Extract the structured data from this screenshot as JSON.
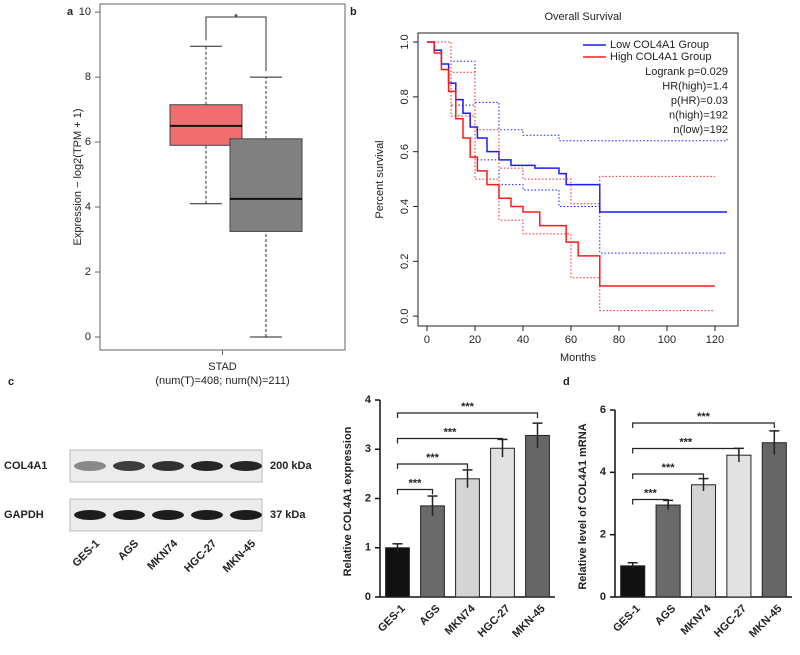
{
  "chart_data": [
    {
      "type": "box",
      "panel": "a",
      "ylabel": "Expression − log2(TPM + 1)",
      "xlabel": "STAD",
      "xsublabel": "(num(T)=408; num(N)=211)",
      "ylim": [
        -0.4,
        10.25
      ],
      "yticks": [
        0,
        2,
        4,
        6,
        8,
        10
      ],
      "boxes": [
        {
          "color": "#f26d6f",
          "q1": 5.9,
          "median": 6.5,
          "q3": 7.15,
          "whisker_low": 4.1,
          "whisker_high": 8.95
        },
        {
          "color": "#808080",
          "q1": 3.25,
          "median": 4.25,
          "q3": 6.1,
          "whisker_low": 0,
          "whisker_high": 8.0
        }
      ],
      "significance": "*",
      "significance_color": "#e03030"
    },
    {
      "type": "survival",
      "panel": "b",
      "title": "Overall Survival",
      "xlabel": "Months",
      "ylabel": "Percent survival",
      "xlim": [
        -3.75,
        129.6
      ],
      "xticks": [
        0,
        20,
        40,
        60,
        80,
        100,
        120
      ],
      "ylim": [
        -0.036,
        1.033
      ],
      "yticks": [
        {
          "value": 0,
          "label": "0.0"
        },
        {
          "value": 0.2,
          "label": "0.2"
        },
        {
          "value": 0.4,
          "label": "0.4"
        },
        {
          "value": 0.6,
          "label": "0.6"
        },
        {
          "value": 0.8,
          "label": "0.8"
        },
        {
          "value": 1,
          "label": "1.0"
        }
      ],
      "series": [
        {
          "name": "Low COL4A1 Group",
          "color": "#1a1aff",
          "x": [
            0,
            3,
            6,
            9,
            12,
            15,
            18,
            21,
            25,
            30,
            35,
            45,
            55,
            58,
            72,
            125
          ],
          "values": [
            1.0,
            0.97,
            0.92,
            0.85,
            0.79,
            0.74,
            0.69,
            0.65,
            0.6,
            0.57,
            0.55,
            0.54,
            0.52,
            0.48,
            0.38,
            0.38
          ],
          "ci_x": [
            0,
            10,
            20,
            30,
            40,
            55,
            72,
            125
          ],
          "ci_upper": [
            1.0,
            0.93,
            0.78,
            0.68,
            0.66,
            0.64,
            0.64,
            0.65
          ],
          "ci_lower": [
            1.0,
            0.77,
            0.57,
            0.48,
            0.46,
            0.4,
            0.23,
            0.23
          ]
        },
        {
          "name": "High COL4A1 Group",
          "color": "#ff1a1a",
          "x": [
            0,
            3,
            6,
            9,
            12,
            15,
            18,
            21,
            25,
            30,
            35,
            40,
            47,
            58,
            63,
            72,
            120
          ],
          "values": [
            1.0,
            0.96,
            0.9,
            0.82,
            0.72,
            0.65,
            0.58,
            0.53,
            0.48,
            0.43,
            0.4,
            0.38,
            0.33,
            0.27,
            0.22,
            0.11,
            0.11
          ],
          "ci_x": [
            0,
            10,
            20,
            30,
            40,
            60,
            72,
            120
          ],
          "ci_upper": [
            1.0,
            0.89,
            0.68,
            0.54,
            0.5,
            0.41,
            0.51,
            0.51
          ],
          "ci_lower": [
            1.0,
            0.73,
            0.5,
            0.35,
            0.3,
            0.14,
            0.02,
            0.02
          ]
        }
      ],
      "annotations": [
        "Logrank p=0.029",
        "HR(high)=1.4",
        "p(HR)=0.03",
        "n(high)=192",
        "n(low)=192"
      ]
    },
    {
      "type": "bar",
      "ylabel": "Relative COL4A1 expression",
      "categories": [
        "GES-1",
        "AGS",
        "MKN74",
        "HGC-27",
        "MKN-45"
      ],
      "values": [
        1.0,
        1.85,
        2.4,
        3.02,
        3.28
      ],
      "errors": [
        0.08,
        0.2,
        0.18,
        0.18,
        0.25
      ],
      "colors": [
        "#111111",
        "#6a6a6a",
        "#d4d4d4",
        "#e2e2e2",
        "#666666"
      ],
      "ylim": [
        0,
        4
      ],
      "yticks": [
        0,
        1,
        2,
        3,
        4
      ],
      "significance": [
        "***",
        "***",
        "***",
        "***"
      ]
    },
    {
      "type": "bar",
      "panel": "d",
      "ylabel": "Relative level of COL4A1 mRNA",
      "categories": [
        "GES-1",
        "AGS",
        "MKN74",
        "HGC-27",
        "MKN-45"
      ],
      "values": [
        1.0,
        2.95,
        3.6,
        4.55,
        4.95
      ],
      "errors": [
        0.1,
        0.15,
        0.2,
        0.22,
        0.38
      ],
      "colors": [
        "#111111",
        "#6a6a6a",
        "#d4d4d4",
        "#e2e2e2",
        "#666666"
      ],
      "ylim": [
        0,
        6
      ],
      "yticks": [
        0,
        2,
        4,
        6
      ],
      "significance": [
        "***",
        "***",
        "***",
        "***"
      ]
    }
  ],
  "blot": {
    "panel": "c",
    "lanes": [
      "GES-1",
      "AGS",
      "MKN74",
      "HGC-27",
      "MKN-45"
    ],
    "rows": [
      {
        "name": "COL4A1",
        "size": "200 kDa"
      },
      {
        "name": "GAPDH",
        "size": "37 kDa"
      }
    ]
  }
}
